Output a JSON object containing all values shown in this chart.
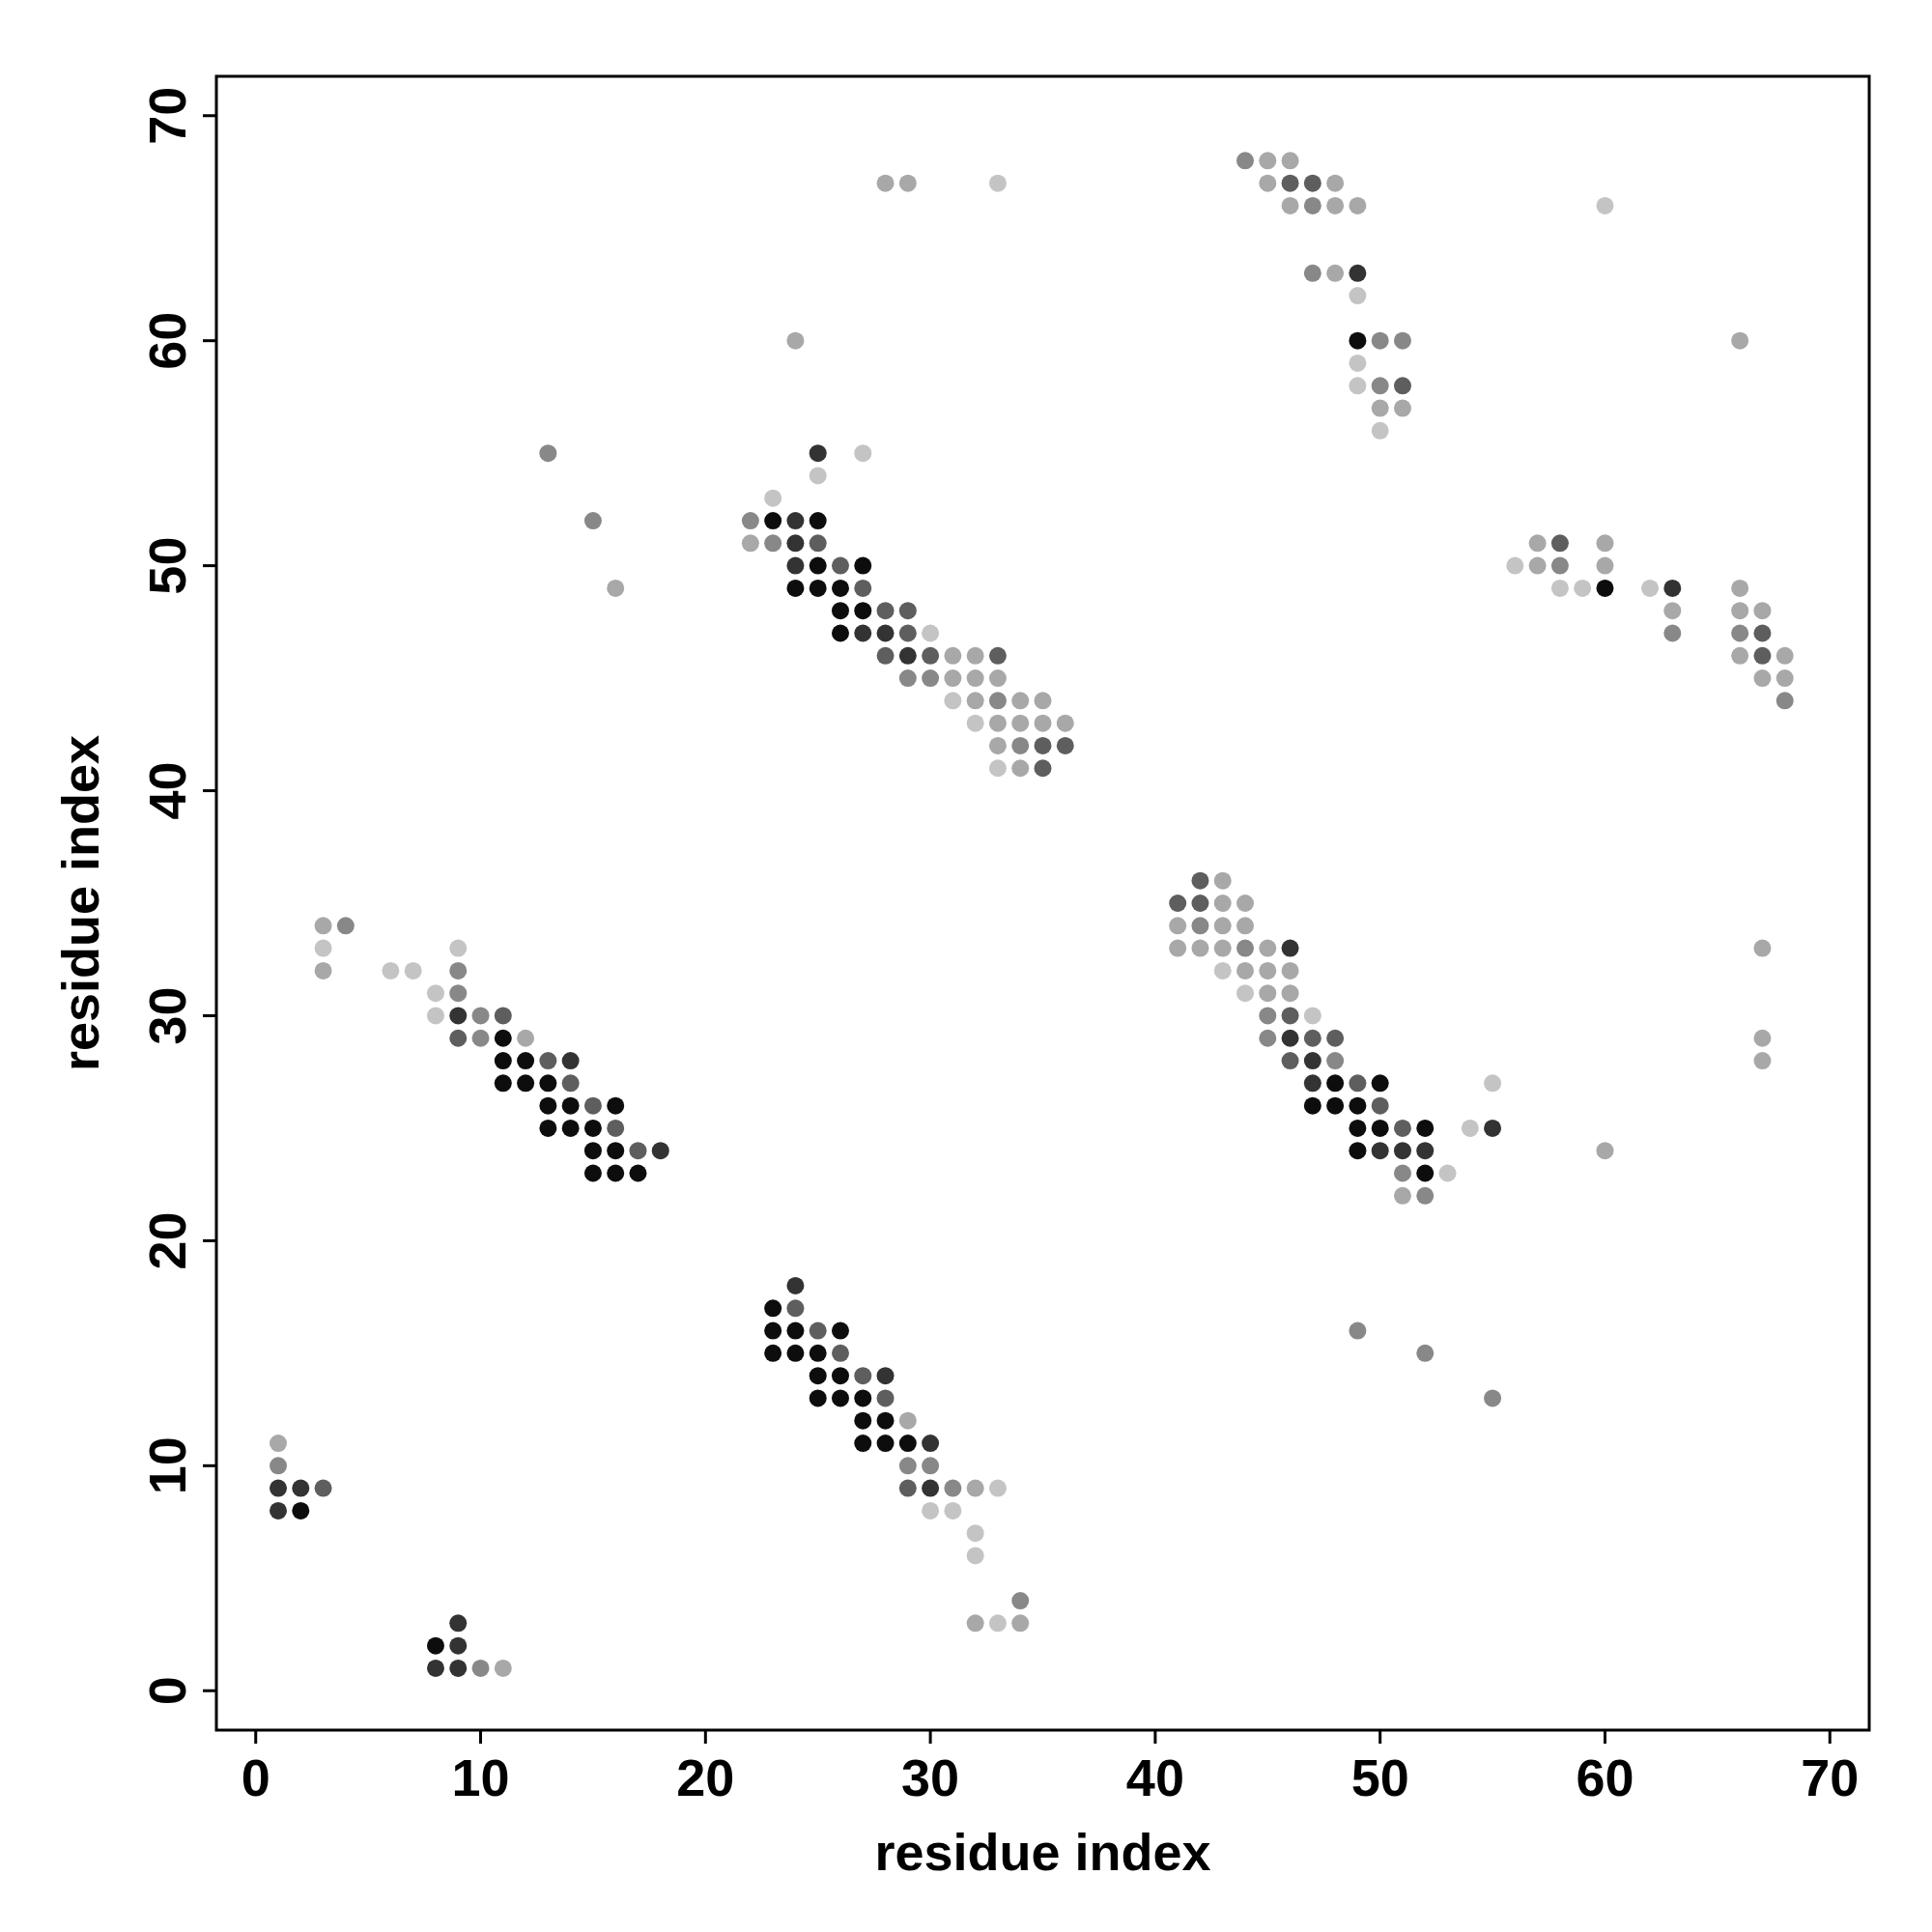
{
  "chart_data": {
    "type": "scatter",
    "xlabel": "residue index",
    "ylabel": "residue index",
    "xlim": [
      -1.75,
      71.75
    ],
    "ylim": [
      -1.75,
      71.75
    ],
    "xticks": [
      0,
      10,
      20,
      30,
      40,
      50,
      60,
      70
    ],
    "yticks": [
      0,
      10,
      20,
      30,
      40,
      50,
      60,
      70
    ],
    "grid": false,
    "marker": "circle",
    "series": [
      {
        "color": "#0d0d0d",
        "x": [
          2,
          8,
          11,
          11,
          12,
          11,
          12,
          13,
          13,
          14,
          16,
          13,
          14,
          15,
          15,
          16,
          15,
          16,
          17,
          23,
          23,
          24,
          26,
          23,
          24,
          25,
          25,
          26,
          25,
          26,
          27,
          27,
          28,
          27,
          28,
          29,
          23,
          25,
          25,
          27,
          24,
          25,
          26,
          26,
          27,
          26,
          48,
          50,
          47,
          48,
          49,
          49,
          50,
          52,
          49,
          52,
          49,
          60
        ],
        "values": [
          8,
          2,
          29,
          28,
          28,
          27,
          27,
          27,
          26,
          26,
          26,
          25,
          25,
          25,
          24,
          24,
          23,
          23,
          23,
          17,
          16,
          16,
          16,
          15,
          15,
          15,
          14,
          14,
          13,
          13,
          13,
          12,
          12,
          11,
          11,
          11,
          52,
          52,
          50,
          50,
          49,
          49,
          49,
          48,
          48,
          47,
          27,
          27,
          26,
          26,
          26,
          25,
          25,
          25,
          24,
          23,
          60,
          49
        ]
      },
      {
        "color": "#333333",
        "x": [
          1,
          2,
          1,
          9,
          9,
          8,
          9,
          9,
          14,
          18,
          24,
          28,
          30,
          30,
          25,
          24,
          24,
          24,
          27,
          28,
          29,
          46,
          46,
          47,
          47,
          55,
          50,
          51,
          52,
          49,
          63
        ],
        "values": [
          9,
          9,
          8,
          3,
          2,
          1,
          1,
          30,
          28,
          24,
          18,
          14,
          11,
          9,
          55,
          52,
          51,
          50,
          47,
          47,
          46,
          33,
          29,
          28,
          27,
          25,
          24,
          24,
          24,
          63,
          49
        ]
      },
      {
        "color": "#5e5e5e",
        "x": [
          3,
          11,
          9,
          13,
          14,
          15,
          16,
          17,
          24,
          25,
          26,
          27,
          28,
          29,
          25,
          26,
          27,
          28,
          29,
          29,
          28,
          30,
          33,
          35,
          36,
          35,
          42,
          41,
          42,
          46,
          47,
          48,
          46,
          49,
          50,
          51,
          46,
          47,
          51,
          58,
          67,
          67
        ],
        "values": [
          9,
          30,
          29,
          28,
          27,
          26,
          25,
          24,
          17,
          16,
          15,
          14,
          13,
          9,
          51,
          50,
          49,
          48,
          48,
          47,
          46,
          46,
          46,
          42,
          42,
          41,
          36,
          35,
          35,
          30,
          29,
          29,
          28,
          27,
          26,
          25,
          67,
          67,
          58,
          51,
          47,
          46
        ]
      },
      {
        "color": "#888888",
        "x": [
          1,
          10,
          4,
          9,
          9,
          10,
          10,
          13,
          15,
          29,
          30,
          31,
          34,
          22,
          23,
          29,
          30,
          33,
          34,
          42,
          44,
          45,
          45,
          48,
          51,
          52,
          49,
          52,
          55,
          44,
          47,
          47,
          50,
          51,
          50,
          58,
          63,
          66,
          68
        ],
        "values": [
          10,
          1,
          34,
          32,
          31,
          30,
          29,
          55,
          52,
          10,
          10,
          9,
          4,
          52,
          51,
          45,
          45,
          44,
          42,
          34,
          33,
          30,
          29,
          28,
          23,
          22,
          16,
          15,
          13,
          68,
          66,
          63,
          60,
          60,
          58,
          50,
          47,
          47,
          44
        ]
      },
      {
        "color": "#a8a8a8",
        "x": [
          1,
          11,
          3,
          3,
          12,
          16,
          29,
          32,
          32,
          34,
          22,
          31,
          32,
          31,
          32,
          33,
          32,
          34,
          35,
          33,
          34,
          35,
          36,
          33,
          34,
          28,
          29,
          24,
          43,
          43,
          44,
          41,
          43,
          44,
          41,
          42,
          43,
          45,
          44,
          45,
          46,
          45,
          46,
          51,
          60,
          67,
          67,
          67,
          66,
          45,
          46,
          45,
          48,
          46,
          48,
          49,
          48,
          50,
          51,
          57,
          60,
          57,
          60,
          63,
          66,
          66,
          67,
          66,
          68,
          67,
          68
        ],
        "values": [
          11,
          1,
          34,
          32,
          29,
          49,
          12,
          9,
          3,
          3,
          51,
          46,
          46,
          45,
          45,
          45,
          44,
          44,
          44,
          43,
          43,
          43,
          43,
          42,
          41,
          67,
          67,
          60,
          36,
          35,
          35,
          34,
          34,
          34,
          33,
          33,
          33,
          33,
          32,
          32,
          32,
          31,
          31,
          22,
          24,
          33,
          29,
          28,
          60,
          68,
          68,
          67,
          67,
          66,
          66,
          66,
          63,
          57,
          57,
          51,
          51,
          50,
          50,
          48,
          49,
          48,
          48,
          46,
          46,
          45,
          45
        ]
      },
      {
        "color": "#c4c4c4",
        "x": [
          3,
          9,
          6,
          7,
          8,
          8,
          33,
          30,
          31,
          32,
          32,
          33,
          27,
          25,
          23,
          30,
          31,
          32,
          33,
          33,
          43,
          44,
          47,
          54,
          55,
          53,
          60,
          49,
          49,
          49,
          50,
          56,
          58,
          59,
          62
        ],
        "values": [
          33,
          33,
          32,
          32,
          31,
          30,
          9,
          8,
          8,
          7,
          6,
          3,
          55,
          54,
          53,
          47,
          44,
          43,
          41,
          67,
          32,
          31,
          30,
          25,
          27,
          23,
          66,
          62,
          59,
          58,
          56,
          50,
          49,
          49,
          49
        ]
      }
    ]
  }
}
